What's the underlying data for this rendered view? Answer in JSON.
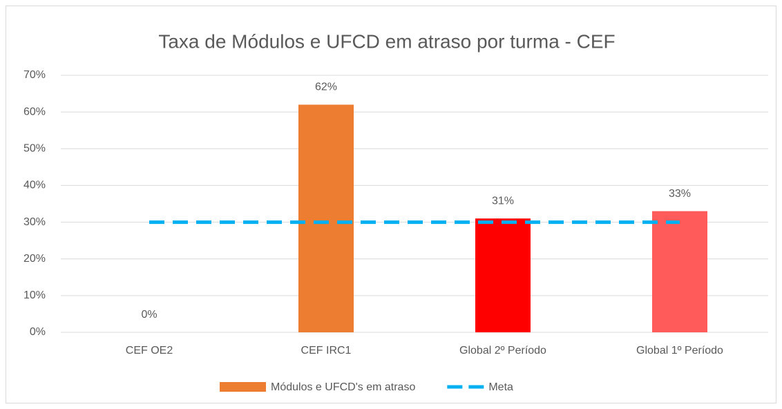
{
  "chart_data": {
    "type": "bar",
    "title": "Taxa de Módulos e UFCD em atraso por turma - CEF",
    "categories": [
      "CEF OE2",
      "CEF IRC1",
      "Global 2º Período",
      "Global 1º Período"
    ],
    "series": [
      {
        "name": "Módulos e UFCD's em atraso",
        "type": "bar",
        "color": "#ED7D31",
        "colors": [
          "#ED7D31",
          "#ED7D31",
          "#FF0000",
          "#FF5B5B"
        ],
        "values": [
          0,
          62,
          31,
          33
        ],
        "value_labels": [
          "0%",
          "62%",
          "31%",
          "33%"
        ]
      },
      {
        "name": "Meta",
        "type": "line",
        "color": "#00B0F0",
        "values": [
          30,
          30,
          30,
          30
        ]
      }
    ],
    "ylim": [
      0,
      70
    ],
    "yticks": [
      {
        "value": 0,
        "label": "0%"
      },
      {
        "value": 10,
        "label": "10%"
      },
      {
        "value": 20,
        "label": "20%"
      },
      {
        "value": 30,
        "label": "30%"
      },
      {
        "value": 40,
        "label": "40%"
      },
      {
        "value": 50,
        "label": "50%"
      },
      {
        "value": 60,
        "label": "60%"
      },
      {
        "value": 70,
        "label": "70%"
      }
    ],
    "grid": true,
    "legend": "bottom"
  }
}
